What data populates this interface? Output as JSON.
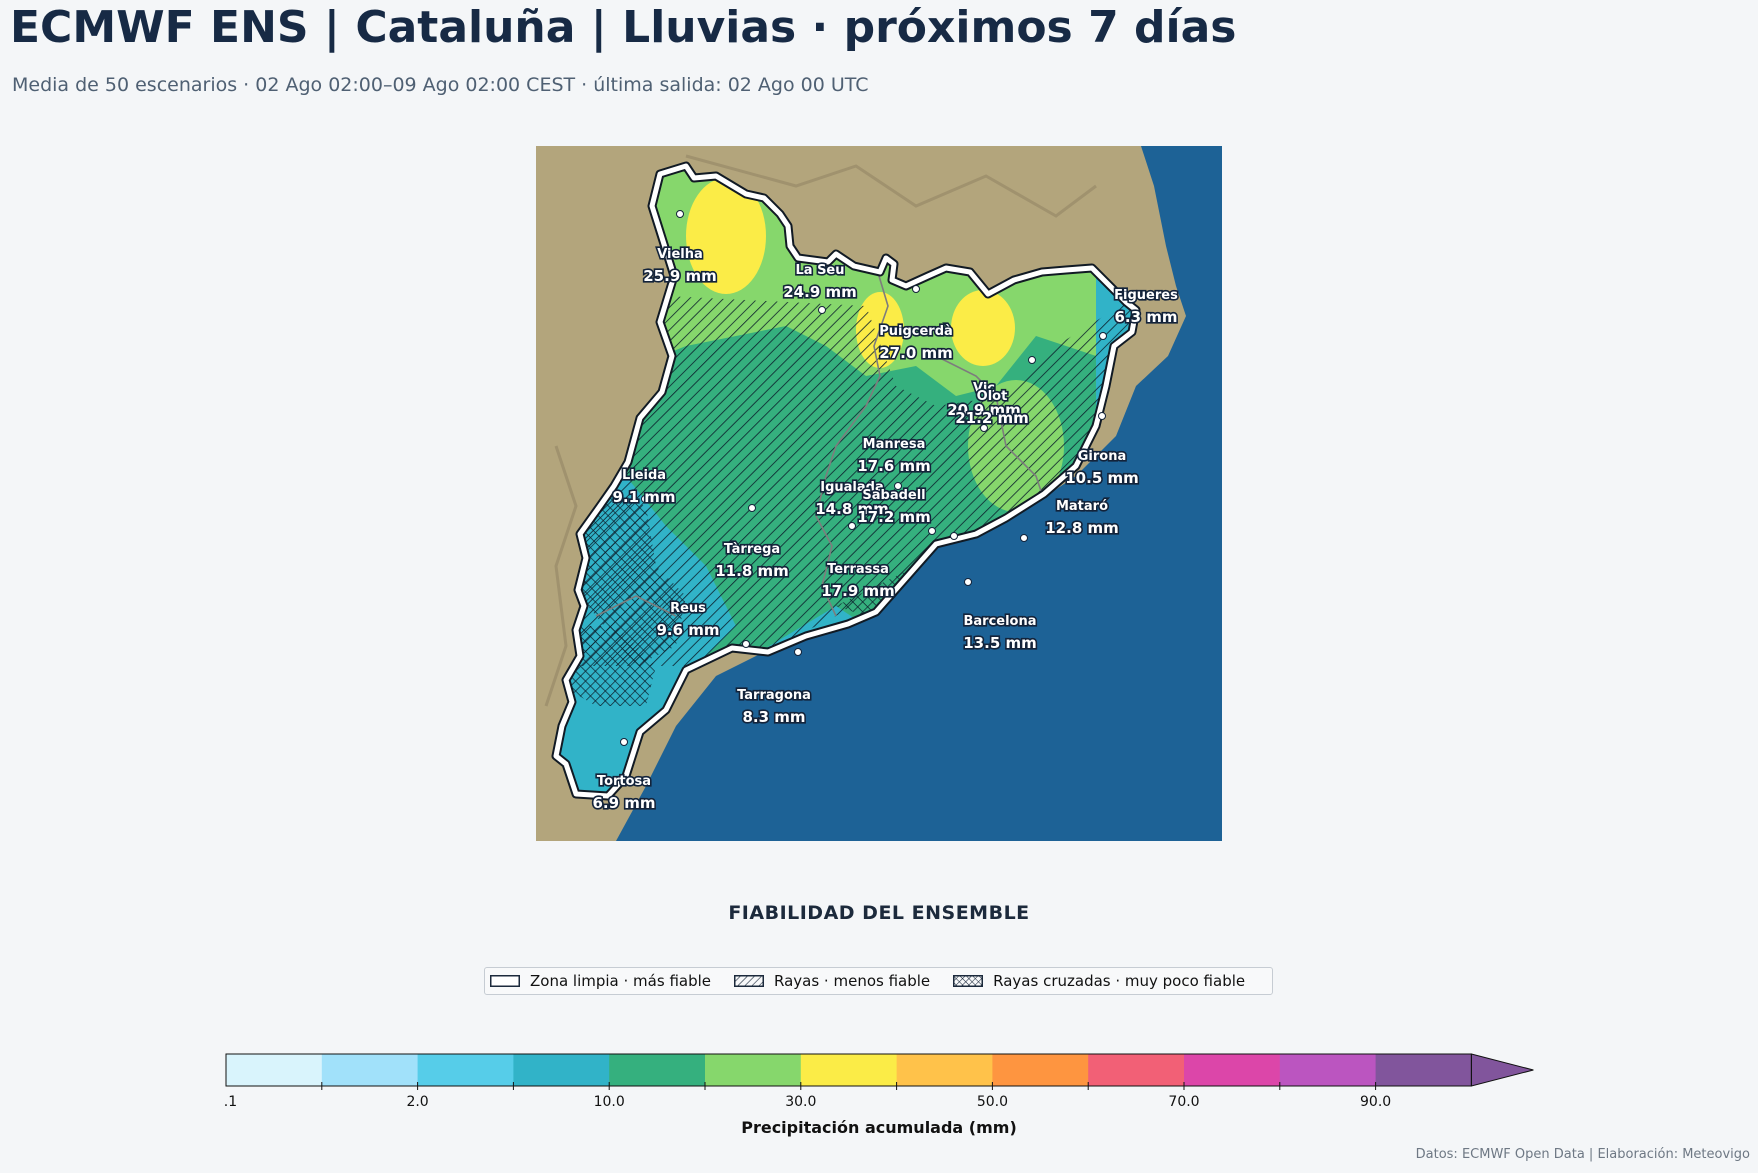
{
  "header": {
    "title": "ECMWF ENS | Cataluña | Lluvias · próximos 7 días",
    "subtitle": "Media de 50 escenarios · 02 Ago 02:00–09 Ago 02:00 CEST · última salida: 02 Ago 00 UTC"
  },
  "map": {
    "cities": [
      {
        "name": "Vielha",
        "value": "25.9 mm"
      },
      {
        "name": "La Seu",
        "value": "24.9 mm"
      },
      {
        "name": "Puigcerdà",
        "value": "27.0 mm"
      },
      {
        "name": "Figueres",
        "value": "6.3 mm"
      },
      {
        "name": "Vic",
        "value": "20.9 mm"
      },
      {
        "name": "Olot",
        "value": "21.2 mm"
      },
      {
        "name": "Manresa",
        "value": "17.6 mm"
      },
      {
        "name": "Girona",
        "value": "10.5 mm"
      },
      {
        "name": "Lleida",
        "value": "9.1 mm"
      },
      {
        "name": "Igualada",
        "value": "14.8 mm"
      },
      {
        "name": "Sabadell",
        "value": "17.2 mm"
      },
      {
        "name": "Mataró",
        "value": "12.8 mm"
      },
      {
        "name": "Tàrrega",
        "value": "11.8 mm"
      },
      {
        "name": "Terrassa",
        "value": "17.9 mm"
      },
      {
        "name": "Reus",
        "value": "9.6 mm"
      },
      {
        "name": "Barcelona",
        "value": "13.5 mm"
      },
      {
        "name": "Tarragona",
        "value": "8.3 mm"
      },
      {
        "name": "Tortosa",
        "value": "6.9 mm"
      }
    ]
  },
  "reliability": {
    "title": "FIABILIDAD DEL ENSEMBLE",
    "items": [
      {
        "label": "Zona limpia · más fiable",
        "pattern": "none"
      },
      {
        "label": "Rayas · menos fiable",
        "pattern": "diagonal"
      },
      {
        "label": "Rayas cruzadas · muy poco fiable",
        "pattern": "cross"
      }
    ]
  },
  "colorbar": {
    "label": "Precipitación acumulada (mm)",
    "colors": [
      "#d9f4fc",
      "#a1e1fa",
      "#56cde9",
      "#31b3c8",
      "#35b07e",
      "#86d76c",
      "#fbec47",
      "#ffc24a",
      "#fe9540",
      "#f26076",
      "#dc46a9",
      "#bb55c0",
      "#81559c"
    ],
    "ticks": [
      "0.1",
      "2.0",
      "10.0",
      "30.0",
      "50.0",
      "70.0",
      "90.0"
    ],
    "extend": "max"
  },
  "credit": "Datos: ECMWF Open Data | Elaboración: Meteovigo",
  "style": {
    "title_color": "#172a45",
    "sea_color": "#1d6296",
    "land_color": "#b3a57c",
    "border_color": "#ffffff"
  }
}
